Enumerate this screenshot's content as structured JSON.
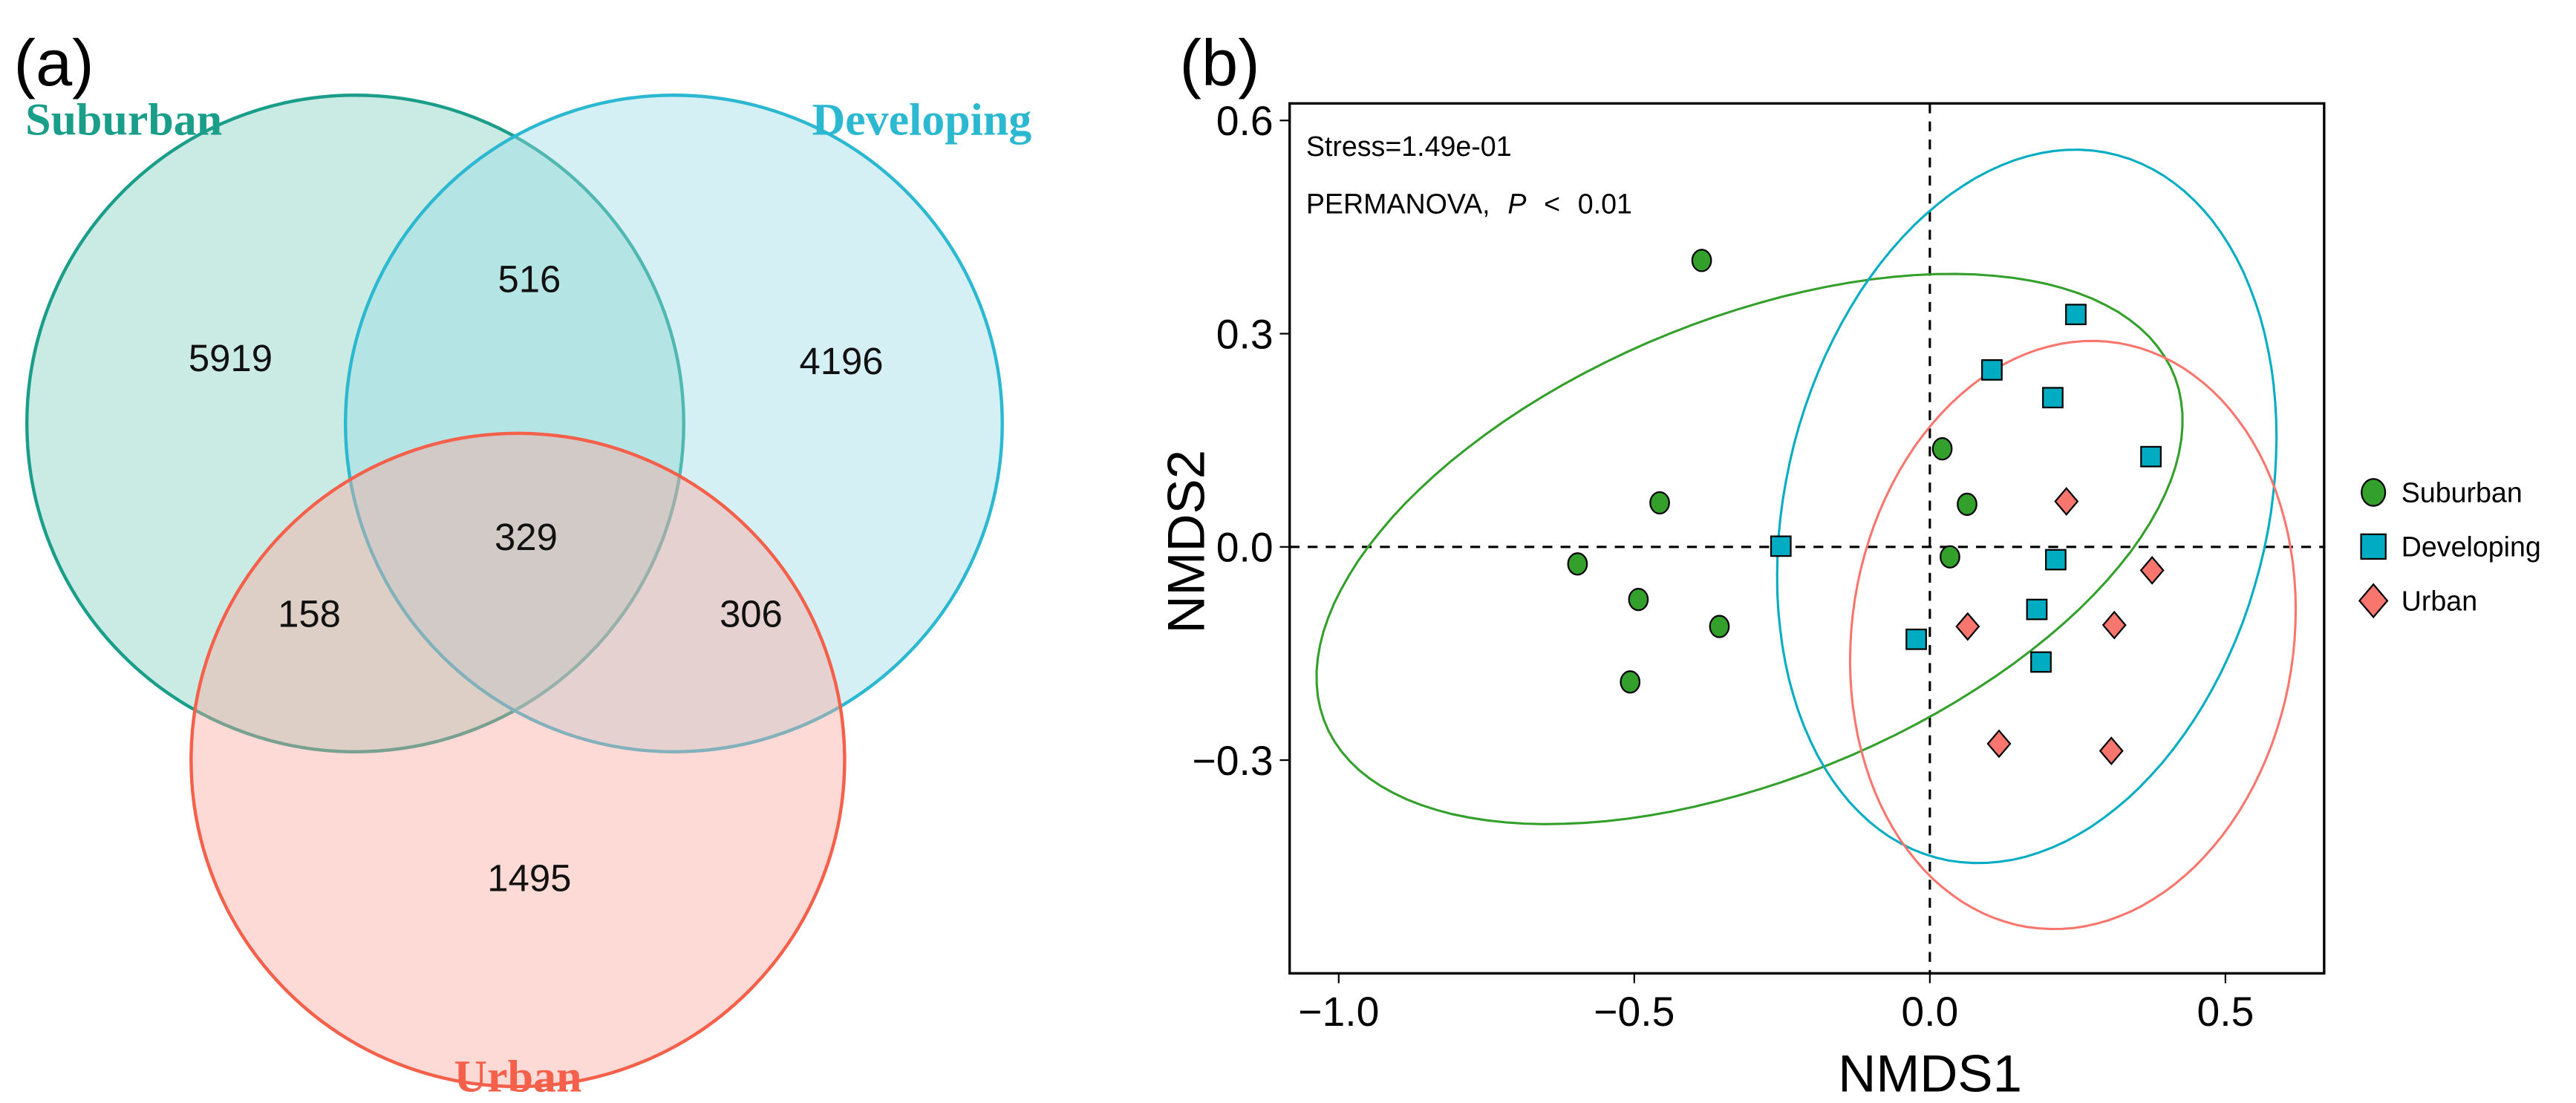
{
  "panel_a": {
    "label": "(a)",
    "sets": [
      {
        "name": "Suburban",
        "color": "#1a9e8a",
        "fill": "#7fd0bf"
      },
      {
        "name": "Developing",
        "color": "#2bb8d0",
        "fill": "#9adbe8"
      },
      {
        "name": "Urban",
        "color": "#f4604a",
        "fill": "#fba79d"
      }
    ],
    "counts": {
      "suburban_only": "5919",
      "suburban_developing": "516",
      "developing_only": "4196",
      "all_three": "329",
      "suburban_urban": "158",
      "developing_urban": "306",
      "urban_only": "1495"
    }
  },
  "chart_data": {
    "type": "scatter",
    "panel_label": "(b)",
    "xlabel": "NMDS1",
    "ylabel": "NMDS2",
    "xlim": [
      -1.083,
      0.667
    ],
    "ylim": [
      -0.6,
      0.624
    ],
    "xticks": [
      "-1.0",
      "-0.5",
      "0.0",
      "0.5"
    ],
    "xtick_values": [
      -1.0,
      -0.5,
      0.0,
      0.5
    ],
    "xtick_text": [
      "−1.0",
      "−0.5",
      "0.0",
      "0.5"
    ],
    "ytick_values": [
      0.6,
      0.3,
      0.0,
      -0.3
    ],
    "ytick_text": [
      "0.6",
      "0.3",
      "0.0",
      "−0.3"
    ],
    "annotations": {
      "stress": "Stress=1.49e-01",
      "permanova": "PERMANOVA,",
      "p": "P",
      "lt": "<",
      "pval": "0.01"
    },
    "legend_position": "right",
    "series": [
      {
        "name": "Suburban",
        "marker": "circle",
        "color": "#33a02c",
        "points": [
          [
            -0.386,
            0.403
          ],
          [
            0.021,
            0.138
          ],
          [
            0.063,
            0.06
          ],
          [
            -0.457,
            0.062
          ],
          [
            -0.596,
            -0.024
          ],
          [
            -0.493,
            -0.074
          ],
          [
            -0.356,
            -0.112
          ],
          [
            -0.507,
            -0.19
          ],
          [
            0.034,
            -0.014
          ]
        ],
        "ellipse": {
          "cx": -0.305,
          "cy": -0.003,
          "a": 0.76,
          "b": 0.33,
          "angle_rad": 0.3
        }
      },
      {
        "name": "Developing",
        "marker": "square",
        "color": "#00acc1",
        "points": [
          [
            0.247,
            0.327
          ],
          [
            0.105,
            0.249
          ],
          [
            0.208,
            0.21
          ],
          [
            0.374,
            0.127
          ],
          [
            -0.252,
            0.001
          ],
          [
            0.213,
            -0.018
          ],
          [
            0.181,
            -0.088
          ],
          [
            -0.023,
            -0.13
          ],
          [
            0.188,
            -0.162
          ]
        ],
        "ellipse": {
          "cx": 0.164,
          "cy": 0.057,
          "a": 0.52,
          "b": 0.4,
          "angle_rad": 1.15
        }
      },
      {
        "name": "Urban",
        "marker": "diamond",
        "color": "#f8766d",
        "points": [
          [
            0.231,
            0.064
          ],
          [
            0.376,
            -0.033
          ],
          [
            0.064,
            -0.112
          ],
          [
            0.312,
            -0.11
          ],
          [
            0.117,
            -0.277
          ],
          [
            0.307,
            -0.287
          ]
        ],
        "ellipse": {
          "cx": 0.242,
          "cy": -0.124,
          "a": 0.42,
          "b": 0.37,
          "angle_rad": 1.2
        }
      }
    ]
  }
}
